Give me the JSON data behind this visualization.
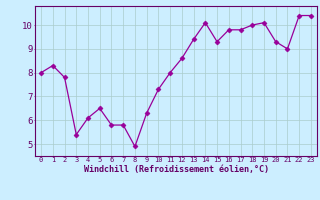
{
  "x": [
    0,
    1,
    2,
    3,
    4,
    5,
    6,
    7,
    8,
    9,
    10,
    11,
    12,
    13,
    14,
    15,
    16,
    17,
    18,
    19,
    20,
    21,
    22,
    23
  ],
  "y": [
    8.0,
    8.3,
    7.8,
    5.4,
    6.1,
    6.5,
    5.8,
    5.8,
    4.9,
    6.3,
    7.3,
    8.0,
    8.6,
    9.4,
    10.1,
    9.3,
    9.8,
    9.8,
    10.0,
    10.1,
    9.3,
    9.0,
    10.4,
    10.4
  ],
  "line_color": "#990099",
  "marker": "D",
  "marker_size": 2.5,
  "bg_color": "#cceeff",
  "grid_color": "#aacccc",
  "xlabel": "Windchill (Refroidissement éolien,°C)",
  "xlabel_color": "#660066",
  "tick_color": "#660066",
  "spine_color": "#660066",
  "ylim": [
    4.5,
    10.8
  ],
  "xlim": [
    -0.5,
    23.5
  ],
  "yticks": [
    5,
    6,
    7,
    8,
    9,
    10
  ],
  "xticks": [
    0,
    1,
    2,
    3,
    4,
    5,
    6,
    7,
    8,
    9,
    10,
    11,
    12,
    13,
    14,
    15,
    16,
    17,
    18,
    19,
    20,
    21,
    22,
    23
  ],
  "tick_fontsize": 5.0,
  "ytick_fontsize": 6.5,
  "xlabel_fontsize": 6.0
}
